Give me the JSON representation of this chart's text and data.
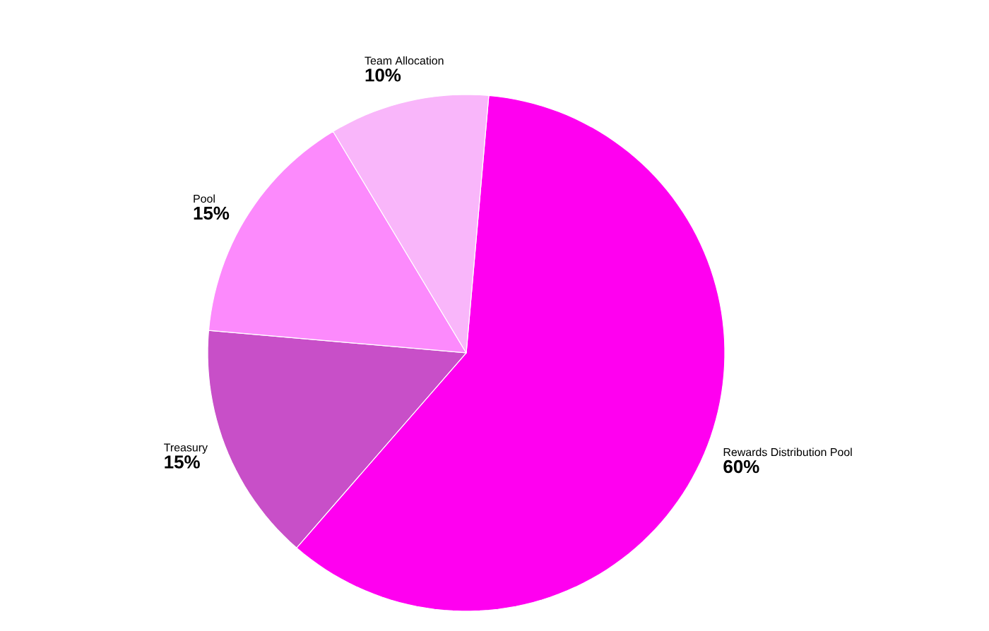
{
  "chart_data": {
    "type": "pie",
    "categories": [
      "Rewards Distribution Pool",
      "Treasury",
      "Pool",
      "Team Allocation"
    ],
    "values": [
      60,
      15,
      15,
      10
    ],
    "value_labels": [
      "60%",
      "15%",
      "15%",
      "10%"
    ],
    "colors": [
      "#ff00f0",
      "#c84fc8",
      "#fc8afc",
      "#f9b6fa"
    ]
  }
}
